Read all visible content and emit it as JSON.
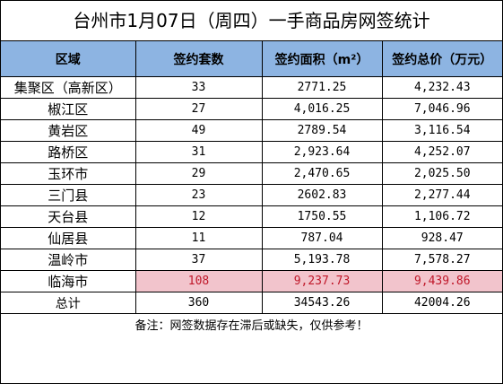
{
  "title": "台州市1月07日（周四）一手商品房网签统计",
  "headers": [
    "区域",
    "签约套数",
    "签约面积（m²）",
    "签约总价（万元）"
  ],
  "rows": [
    {
      "region": "集聚区（高新区）",
      "units": "33",
      "area": "2771.25",
      "price": "4,232.43"
    },
    {
      "region": "椒江区",
      "units": "27",
      "area": "4,016.25",
      "price": "7,046.96"
    },
    {
      "region": "黄岩区",
      "units": "49",
      "area": "2789.54",
      "price": "3,116.54"
    },
    {
      "region": "路桥区",
      "units": "31",
      "area": "2,923.64",
      "price": "4,252.07"
    },
    {
      "region": "玉环市",
      "units": "29",
      "area": "2,470.65",
      "price": "2,025.50"
    },
    {
      "region": "三门县",
      "units": "23",
      "area": "2602.83",
      "price": "2,277.44"
    },
    {
      "region": "天台县",
      "units": "12",
      "area": "1750.55",
      "price": "1,106.72"
    },
    {
      "region": "仙居县",
      "units": "11",
      "area": "787.04",
      "price": "928.47"
    },
    {
      "region": "温岭市",
      "units": "37",
      "area": "5,193.78",
      "price": "7,578.27"
    },
    {
      "region": "临海市",
      "units": "108",
      "area": "9,237.73",
      "price": "9,439.86"
    }
  ],
  "total": {
    "region": "总计",
    "units": "360",
    "area": "34543.26",
    "price": "42004.26"
  },
  "note": "备注：网签数据存在滞后或缺失，仅供参考！",
  "colors": {
    "header_bg": "#8db4e2",
    "highlight_bg": "#f2c4cc",
    "highlight_text": "#c0182a"
  }
}
